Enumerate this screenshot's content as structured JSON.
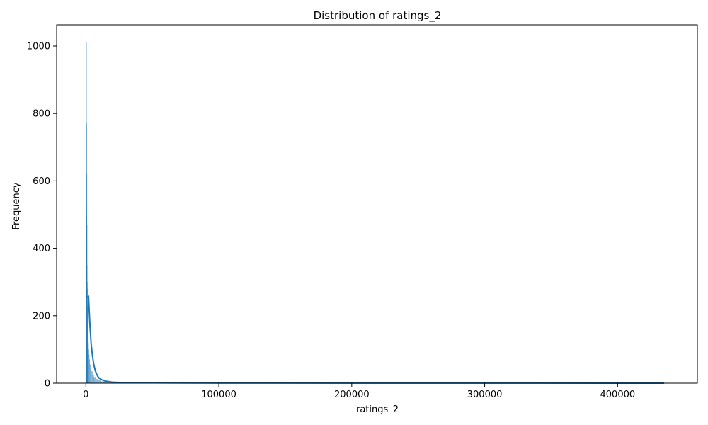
{
  "chart_data": {
    "type": "histogram",
    "title": "Distribution of ratings_2",
    "xlabel": "ratings_2",
    "ylabel": "Frequency",
    "xlim": [
      -22000,
      460000
    ],
    "ylim": [
      0,
      1063
    ],
    "x_ticks": [
      0,
      100000,
      200000,
      300000,
      400000
    ],
    "x_tick_labels": [
      "0",
      "100000",
      "200000",
      "300000",
      "400000"
    ],
    "y_ticks": [
      0,
      200,
      400,
      600,
      800,
      1000
    ],
    "y_tick_labels": [
      "0",
      "200",
      "400",
      "600",
      "800",
      "1000"
    ],
    "grid": false,
    "legend": "none",
    "bar_color": "#1f77b4",
    "bar_fill_opacity": 0.5,
    "kde_color": "#1f77b4",
    "histogram": {
      "bins": [
        {
          "x0": 0,
          "x1": 100,
          "count": 250
        },
        {
          "x0": 100,
          "x1": 200,
          "count": 530
        },
        {
          "x0": 200,
          "x1": 300,
          "count": 400
        },
        {
          "x0": 300,
          "x1": 400,
          "count": 1010
        },
        {
          "x0": 400,
          "x1": 500,
          "count": 500
        },
        {
          "x0": 500,
          "x1": 600,
          "count": 770
        },
        {
          "x0": 600,
          "x1": 700,
          "count": 620
        },
        {
          "x0": 700,
          "x1": 800,
          "count": 470
        },
        {
          "x0": 800,
          "x1": 900,
          "count": 350
        },
        {
          "x0": 900,
          "x1": 1000,
          "count": 300
        },
        {
          "x0": 1000,
          "x1": 1200,
          "count": 280
        },
        {
          "x0": 1200,
          "x1": 1400,
          "count": 230
        },
        {
          "x0": 1400,
          "x1": 1600,
          "count": 180
        },
        {
          "x0": 1600,
          "x1": 1800,
          "count": 140
        },
        {
          "x0": 1800,
          "x1": 2000,
          "count": 120
        },
        {
          "x0": 2000,
          "x1": 2300,
          "count": 100
        },
        {
          "x0": 2300,
          "x1": 2600,
          "count": 85
        },
        {
          "x0": 2600,
          "x1": 3000,
          "count": 70
        },
        {
          "x0": 3000,
          "x1": 3500,
          "count": 55
        },
        {
          "x0": 3500,
          "x1": 4000,
          "count": 45
        },
        {
          "x0": 4000,
          "x1": 5000,
          "count": 35
        },
        {
          "x0": 5000,
          "x1": 6000,
          "count": 25
        },
        {
          "x0": 6000,
          "x1": 7500,
          "count": 18
        },
        {
          "x0": 7500,
          "x1": 9000,
          "count": 12
        },
        {
          "x0": 9000,
          "x1": 11000,
          "count": 8
        },
        {
          "x0": 11000,
          "x1": 14000,
          "count": 5
        },
        {
          "x0": 14000,
          "x1": 18000,
          "count": 3
        },
        {
          "x0": 18000,
          "x1": 25000,
          "count": 2
        },
        {
          "x0": 25000,
          "x1": 40000,
          "count": 1
        },
        {
          "x0": 40000,
          "x1": 70000,
          "count": 1
        }
      ]
    },
    "kde": {
      "x": [
        0,
        1000,
        2000,
        3000,
        4000,
        5000,
        6000,
        7000,
        8000,
        9000,
        10000,
        12000,
        15000,
        20000,
        30000,
        50000,
        100000,
        200000,
        300000,
        400000,
        435000
      ],
      "y": [
        252,
        255,
        257,
        175,
        115,
        80,
        55,
        38,
        28,
        20,
        15,
        10,
        6,
        3,
        1.5,
        1,
        0.5,
        0.3,
        0.2,
        0.1,
        0.1
      ]
    }
  }
}
